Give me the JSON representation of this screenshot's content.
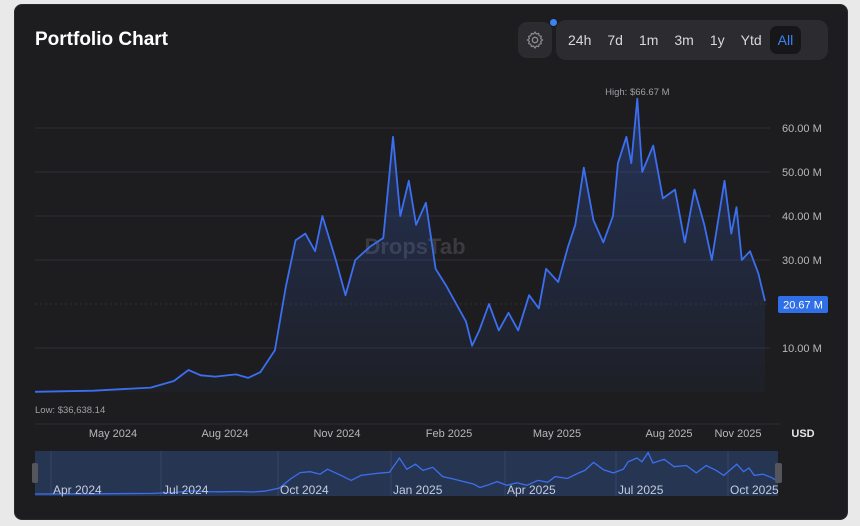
{
  "header": {
    "title": "Portfolio Chart",
    "settings_icon": "gear-icon",
    "notification_dot_color": "#3b82f6"
  },
  "ranges": [
    {
      "label": "24h"
    },
    {
      "label": "7d"
    },
    {
      "label": "1m"
    },
    {
      "label": "3m"
    },
    {
      "label": "1y"
    },
    {
      "label": "Ytd"
    },
    {
      "label": "All",
      "active": true
    }
  ],
  "watermark": "DropsTab",
  "chart_data": {
    "type": "area",
    "currency": "USD",
    "line_color": "#3b6ff0",
    "high_label": "High: $66.67 M",
    "low_label": "Low: $36,638.14",
    "current_label": "20.67 M",
    "current_value": 20.67,
    "y_ticks": [
      {
        "v": 10,
        "label": "10.00 M"
      },
      {
        "v": 20,
        "label": ""
      },
      {
        "v": 30,
        "label": "30.00 M"
      },
      {
        "v": 40,
        "label": "40.00 M"
      },
      {
        "v": 50,
        "label": "50.00 M"
      },
      {
        "v": 60,
        "label": "60.00 M"
      }
    ],
    "ylim": [
      0,
      70
    ],
    "x_ticks": [
      {
        "d": "2024-05-01",
        "label": "May 2024"
      },
      {
        "d": "2024-08-01",
        "label": "Aug 2024"
      },
      {
        "d": "2024-11-01",
        "label": "Nov 2024"
      },
      {
        "d": "2025-02-01",
        "label": "Feb 2025"
      },
      {
        "d": "2025-05-01",
        "label": "May 2025"
      },
      {
        "d": "2025-08-01",
        "label": "Aug 2025"
      },
      {
        "d": "2025-11-01",
        "label": "Nov 2025"
      }
    ],
    "navigator_ticks": [
      "Apr 2024",
      "Jul 2024",
      "Oct 2024",
      "Jan 2025",
      "Apr 2025",
      "Jul 2025",
      "Oct 2025"
    ],
    "points": [
      [
        "2024-02-27",
        0.04
      ],
      [
        "2024-04-15",
        0.3
      ],
      [
        "2024-06-01",
        1.0
      ],
      [
        "2024-06-20",
        2.5
      ],
      [
        "2024-07-02",
        5.0
      ],
      [
        "2024-07-12",
        3.8
      ],
      [
        "2024-07-24",
        3.5
      ],
      [
        "2024-08-10",
        4.0
      ],
      [
        "2024-08-20",
        3.2
      ],
      [
        "2024-08-30",
        4.5
      ],
      [
        "2024-09-11",
        9.5
      ],
      [
        "2024-09-20",
        24
      ],
      [
        "2024-09-28",
        34.5
      ],
      [
        "2024-10-06",
        36
      ],
      [
        "2024-10-14",
        32
      ],
      [
        "2024-10-20",
        40
      ],
      [
        "2024-10-31",
        30
      ],
      [
        "2024-11-08",
        22
      ],
      [
        "2024-11-16",
        30
      ],
      [
        "2024-11-28",
        33
      ],
      [
        "2024-12-09",
        35
      ],
      [
        "2024-12-17",
        58
      ],
      [
        "2024-12-23",
        40
      ],
      [
        "2024-12-30",
        48
      ],
      [
        "2025-01-05",
        38
      ],
      [
        "2025-01-13",
        43
      ],
      [
        "2025-01-21",
        28
      ],
      [
        "2025-01-30",
        24
      ],
      [
        "2025-02-07",
        20
      ],
      [
        "2025-02-15",
        16
      ],
      [
        "2025-02-20",
        10.5
      ],
      [
        "2025-02-26",
        14
      ],
      [
        "2025-03-06",
        20
      ],
      [
        "2025-03-14",
        14
      ],
      [
        "2025-03-22",
        18
      ],
      [
        "2025-03-30",
        14
      ],
      [
        "2025-04-08",
        22
      ],
      [
        "2025-04-16",
        19
      ],
      [
        "2025-04-22",
        28
      ],
      [
        "2025-05-02",
        25
      ],
      [
        "2025-05-10",
        33
      ],
      [
        "2025-05-16",
        38
      ],
      [
        "2025-05-23",
        51
      ],
      [
        "2025-05-31",
        39
      ],
      [
        "2025-06-08",
        34
      ],
      [
        "2025-06-16",
        40
      ],
      [
        "2025-06-20",
        52
      ],
      [
        "2025-06-27",
        58
      ],
      [
        "2025-07-01",
        52
      ],
      [
        "2025-07-06",
        66.67
      ],
      [
        "2025-07-10",
        50
      ],
      [
        "2025-07-19",
        56
      ],
      [
        "2025-07-27",
        44
      ],
      [
        "2025-08-09",
        46
      ],
      [
        "2025-08-22",
        34
      ],
      [
        "2025-09-04",
        46
      ],
      [
        "2025-09-17",
        38
      ],
      [
        "2025-09-27",
        30
      ],
      [
        "2025-10-14",
        48
      ],
      [
        "2025-10-23",
        36
      ],
      [
        "2025-10-30",
        42
      ],
      [
        "2025-11-06",
        30
      ],
      [
        "2025-11-17",
        32
      ],
      [
        "2025-11-28",
        27
      ],
      [
        "2025-12-07",
        20.67
      ]
    ]
  }
}
